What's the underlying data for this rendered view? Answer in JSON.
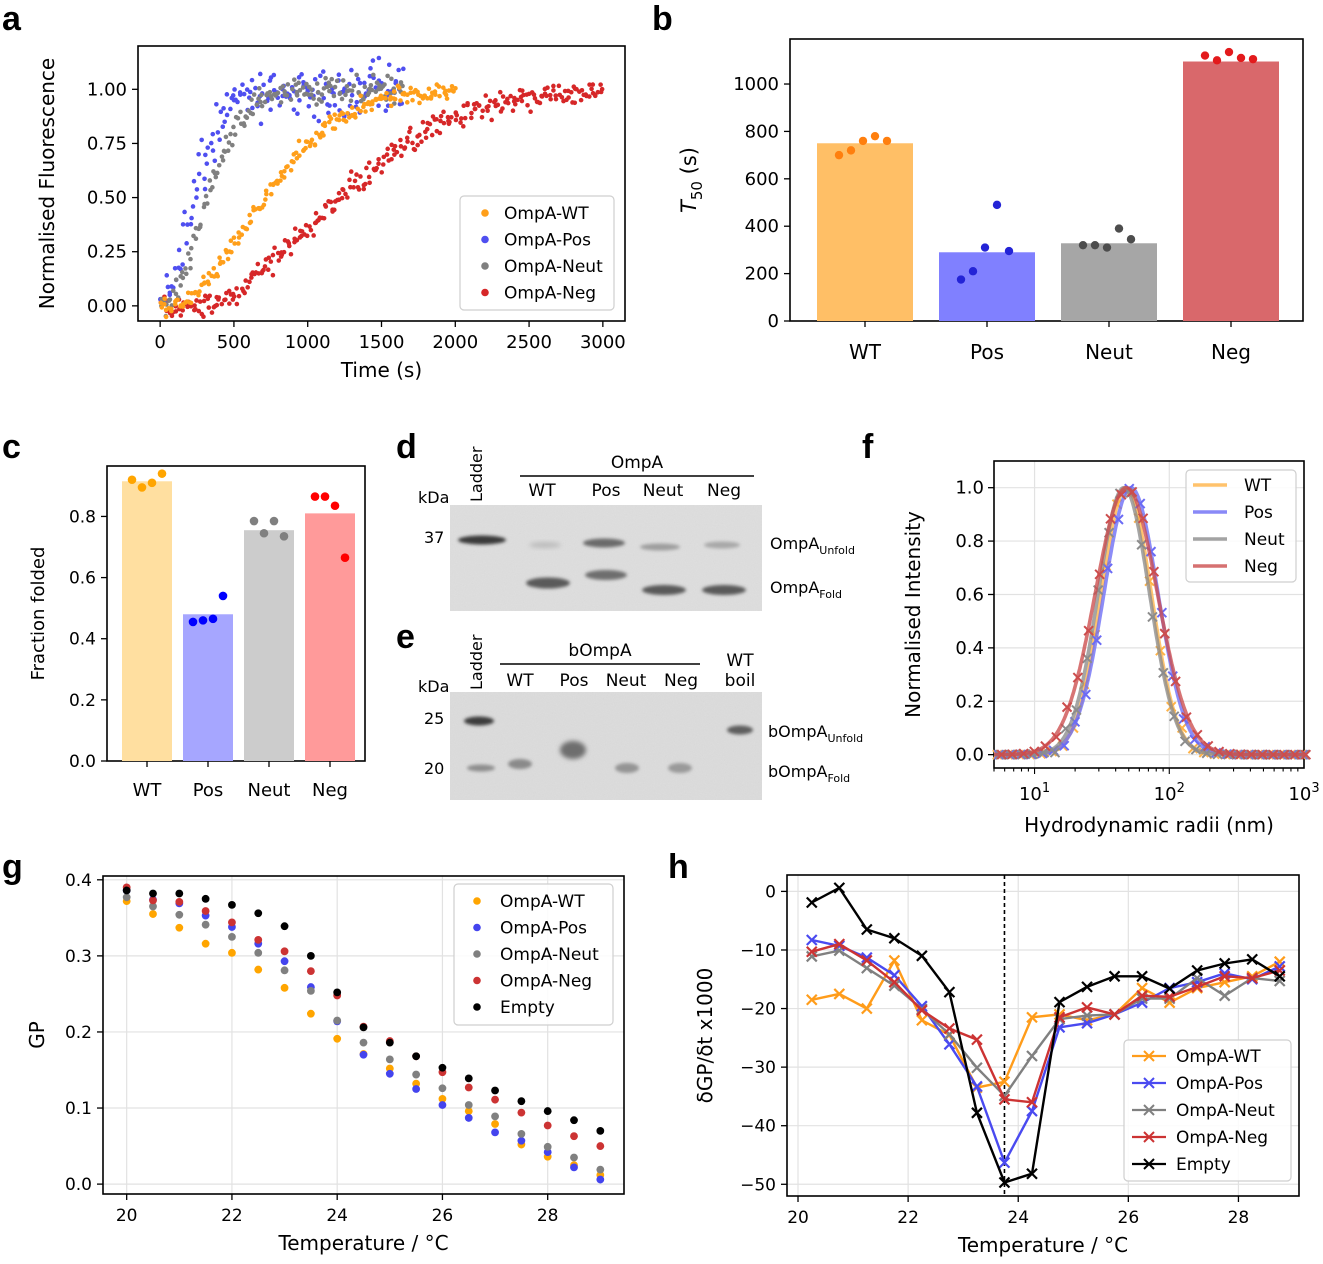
{
  "chart_data": [
    {
      "panel": "a",
      "type": "scatter",
      "xlabel": "Time (s)",
      "ylabel": "Normalised Fluorescence",
      "xlim": [
        -150,
        3150
      ],
      "ylim": [
        -0.07,
        1.2
      ],
      "xticks": [
        0,
        500,
        1000,
        1500,
        2000,
        2500,
        3000
      ],
      "yticks": [
        0.0,
        0.25,
        0.5,
        0.75,
        1.0
      ],
      "legend": "lower right",
      "series": [
        {
          "name": "OmpA-WT",
          "color": "#ff9f1a",
          "t_end": 2000,
          "k": 0.0013,
          "lag": 80,
          "noise": 0.025
        },
        {
          "name": "OmpA-Pos",
          "color": "#4f4ff0",
          "t_end": 1650,
          "k": 0.0034,
          "lag": 0,
          "noise": 0.08
        },
        {
          "name": "OmpA-Neut",
          "color": "#808080",
          "t_end": 1650,
          "k": 0.0028,
          "lag": 30,
          "noise": 0.04
        },
        {
          "name": "OmpA-Neg",
          "color": "#d62728",
          "t_end": 3000,
          "k": 0.00085,
          "lag": 250,
          "noise": 0.035
        }
      ]
    },
    {
      "panel": "b",
      "type": "bar",
      "ylabel": "T50 (s)",
      "ylabel_base": "T",
      "ylabel_sub": "50",
      "ylabel_rest": " (s)",
      "categories": [
        "WT",
        "Pos",
        "Neut",
        "Neg"
      ],
      "values": [
        750,
        290,
        328,
        1095
      ],
      "ylim": [
        0,
        1190
      ],
      "yticks": [
        0,
        200,
        400,
        600,
        800,
        1000
      ],
      "bar_colors": [
        "#ffbf66",
        "#8080ff",
        "#a6a6a6",
        "#d9686b"
      ],
      "point_colors": [
        "#ff7f0e",
        "#2424d6",
        "#4d4d4d",
        "#e31a1c"
      ],
      "points": [
        [
          700,
          720,
          760,
          780,
          760
        ],
        [
          175,
          210,
          310,
          490,
          295
        ],
        [
          320,
          320,
          310,
          390,
          345
        ],
        [
          1120,
          1100,
          1135,
          1110,
          1105
        ]
      ]
    },
    {
      "panel": "c",
      "type": "bar",
      "ylabel": "Fraction folded",
      "categories": [
        "WT",
        "Pos",
        "Neut",
        "Neg"
      ],
      "values": [
        0.915,
        0.48,
        0.755,
        0.81
      ],
      "ylim": [
        0,
        0.965
      ],
      "yticks": [
        0.0,
        0.2,
        0.4,
        0.6,
        0.8
      ],
      "bar_colors": [
        "#ffdfa0",
        "#a6a6ff",
        "#cccccc",
        "#ff9a9a"
      ],
      "point_colors": [
        "#ffa500",
        "#0000ff",
        "#808080",
        "#ff0000"
      ],
      "points": [
        [
          0.92,
          0.895,
          0.91,
          0.94
        ],
        [
          0.455,
          0.46,
          0.465,
          0.54
        ],
        [
          0.785,
          0.745,
          0.785,
          0.735
        ],
        [
          0.865,
          0.865,
          0.835,
          0.665
        ]
      ]
    },
    {
      "panel": "f",
      "type": "line",
      "xlabel": "Hydrodynamic radii (nm)",
      "ylabel": "Normalised Intensity",
      "xscale": "log",
      "xlim": [
        5,
        1000
      ],
      "ylim": [
        -0.05,
        1.1
      ],
      "xticks": [
        "10^1",
        "10^2",
        "10^3"
      ],
      "yticks": [
        0.0,
        0.2,
        0.4,
        0.6,
        0.8,
        1.0
      ],
      "legend": "upper right",
      "series": [
        {
          "name": "WT",
          "color": "#ffb347",
          "peak_nm": 48,
          "sigma_log": 0.185
        },
        {
          "name": "Pos",
          "color": "#6b6bf5",
          "peak_nm": 52,
          "sigma_log": 0.2
        },
        {
          "name": "Neut",
          "color": "#8c8c8c",
          "peak_nm": 46,
          "sigma_log": 0.19
        },
        {
          "name": "Neg",
          "color": "#cc4d4d",
          "peak_nm": 48,
          "sigma_log": 0.23
        }
      ]
    },
    {
      "panel": "g",
      "type": "scatter",
      "xlabel": "Temperature / °C",
      "ylabel": "GP",
      "xlim": [
        19.55,
        29.45
      ],
      "ylim": [
        -0.013,
        0.405
      ],
      "xticks": [
        20,
        22,
        24,
        26,
        28
      ],
      "yticks": [
        0.0,
        0.1,
        0.2,
        0.3,
        0.4
      ],
      "legend": "upper right",
      "x": [
        20,
        20.5,
        21,
        21.5,
        22,
        22.5,
        23,
        23.5,
        24,
        24.5,
        25,
        25.5,
        26,
        26.5,
        27,
        27.5,
        28,
        28.5,
        29
      ],
      "series": [
        {
          "name": "OmpA-WT",
          "color": "#ffa500",
          "values": [
            0.372,
            0.355,
            0.337,
            0.316,
            0.304,
            0.282,
            0.258,
            0.224,
            0.191,
            0.171,
            0.152,
            0.132,
            0.112,
            0.096,
            0.079,
            0.052,
            0.036,
            0.025,
            0.012
          ]
        },
        {
          "name": "OmpA-Pos",
          "color": "#4444ee",
          "values": [
            0.386,
            0.374,
            0.369,
            0.353,
            0.338,
            0.316,
            0.293,
            0.259,
            0.214,
            0.17,
            0.145,
            0.125,
            0.104,
            0.087,
            0.068,
            0.057,
            0.042,
            0.022,
            0.006
          ]
        },
        {
          "name": "OmpA-Neut",
          "color": "#808080",
          "values": [
            0.377,
            0.365,
            0.354,
            0.341,
            0.325,
            0.304,
            0.281,
            0.254,
            0.215,
            0.186,
            0.164,
            0.144,
            0.126,
            0.104,
            0.089,
            0.066,
            0.049,
            0.035,
            0.019
          ]
        },
        {
          "name": "OmpA-Neg",
          "color": "#cc3333",
          "values": [
            0.39,
            0.373,
            0.371,
            0.359,
            0.344,
            0.321,
            0.306,
            0.28,
            0.248,
            0.207,
            0.188,
            0.168,
            0.147,
            0.127,
            0.111,
            0.094,
            0.077,
            0.063,
            0.05
          ]
        },
        {
          "name": "Empty",
          "color": "#000000",
          "values": [
            0.386,
            0.382,
            0.382,
            0.375,
            0.367,
            0.356,
            0.339,
            0.3,
            0.252,
            0.206,
            0.186,
            0.168,
            0.153,
            0.139,
            0.123,
            0.109,
            0.096,
            0.084,
            0.07
          ]
        }
      ]
    },
    {
      "panel": "h",
      "type": "line",
      "xlabel": "Temperature / °C",
      "ylabel": "δGP/δt x1000",
      "xlim": [
        19.8,
        29.1
      ],
      "ylim": [
        -52,
        2.8
      ],
      "xticks": [
        20,
        22,
        24,
        26,
        28
      ],
      "yticks": [
        0,
        -10,
        -20,
        -30,
        -40,
        -50
      ],
      "vline": 23.75,
      "legend": "lower right",
      "x": [
        20.25,
        20.75,
        21.25,
        21.75,
        22.25,
        22.75,
        23.25,
        23.75,
        24.25,
        24.75,
        25.25,
        25.75,
        26.25,
        26.75,
        27.25,
        27.75,
        28.25,
        28.75
      ],
      "series": [
        {
          "name": "OmpA-WT",
          "color": "#ff9c1a",
          "values": [
            -18.5,
            -17.5,
            -20,
            -11.8,
            -22,
            -24.5,
            -33.5,
            -32.5,
            -21.5,
            -21,
            -22,
            -21,
            -16.5,
            -19,
            -16.5,
            -15.5,
            -14.5,
            -12
          ]
        },
        {
          "name": "OmpA-Pos",
          "color": "#4a4af0",
          "values": [
            -8.3,
            -9.3,
            -11.3,
            -14.3,
            -19.6,
            -26.1,
            -33.3,
            -46.3,
            -37.5,
            -23.2,
            -22.5,
            -21,
            -19,
            -16.5,
            -15.5,
            -14,
            -15,
            -12.8
          ]
        },
        {
          "name": "OmpA-Neut",
          "color": "#808080",
          "values": [
            -11.1,
            -10.1,
            -13.1,
            -16.1,
            -20.1,
            -24.4,
            -30.1,
            -34.9,
            -28.1,
            -21.8,
            -21.2,
            -21,
            -18.3,
            -18.3,
            -14.8,
            -17.8,
            -14.8,
            -15.3
          ]
        },
        {
          "name": "OmpA-Neg",
          "color": "#cc3333",
          "values": [
            -10.3,
            -9,
            -11.8,
            -15.5,
            -20.3,
            -23.4,
            -25.3,
            -35.5,
            -36,
            -21.5,
            -19.8,
            -21,
            -17.8,
            -18,
            -16.3,
            -14.5,
            -14.8,
            -13.5
          ]
        },
        {
          "name": "Empty",
          "color": "#000000",
          "values": [
            -1.9,
            0.6,
            -6.5,
            -8,
            -11,
            -17.2,
            -37.8,
            -49.7,
            -48.2,
            -18.9,
            -16.3,
            -14.5,
            -14.5,
            -16.6,
            -13.5,
            -12.3,
            -11.6,
            -14.5
          ]
        }
      ]
    }
  ],
  "panel_labels": {
    "a": "a",
    "b": "b",
    "c": "c",
    "d": "d",
    "e": "e",
    "f": "f",
    "g": "g",
    "h": "h"
  },
  "gel_d": {
    "ladder": "Ladder",
    "group": "OmpA",
    "lanes": [
      "WT",
      "Pos",
      "Neut",
      "Neg"
    ],
    "kda": "kDa",
    "marker": "37",
    "unfold_base": "OmpA",
    "unfold_sub": "Unfold",
    "fold_base": "OmpA",
    "fold_sub": "Fold"
  },
  "gel_e": {
    "ladder": "Ladder",
    "group": "bOmpA",
    "lanes": [
      "WT",
      "Pos",
      "Neut",
      "Neg"
    ],
    "boil_1": "WT",
    "boil_2": "boil",
    "kda": "kDa",
    "marker_1": "25",
    "marker_2": "20",
    "unfold_base": "bOmpA",
    "unfold_sub": "Unfold",
    "fold_base": "bOmpA",
    "fold_sub": "Fold"
  }
}
